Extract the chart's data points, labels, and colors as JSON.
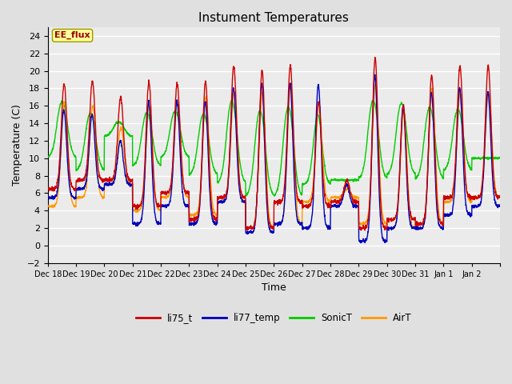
{
  "title": "Instument Temperatures",
  "xlabel": "Time",
  "ylabel": "Temperature (C)",
  "ylim": [
    -2,
    25
  ],
  "yticks": [
    -2,
    0,
    2,
    4,
    6,
    8,
    10,
    12,
    14,
    16,
    18,
    20,
    22,
    24
  ],
  "background_color": "#e0e0e0",
  "plot_bg_color": "#ebebeb",
  "series_colors": {
    "li75_t": "#cc0000",
    "li77_temp": "#0000bb",
    "SonicT": "#00cc00",
    "AirT": "#ff9900"
  },
  "x_tick_labels": [
    "Dec 18",
    "Dec 19",
    "Dec 20",
    "Dec 21",
    "Dec 22",
    "Dec 23",
    "Dec 24",
    "Dec 25",
    "Dec 26",
    "Dec 27",
    "Dec 28",
    "Dec 29",
    "Dec 30",
    "Dec 31",
    "Jan 1",
    "Jan 2"
  ],
  "num_days": 16,
  "line_width": 1.0,
  "annotation_text": "EE_flux",
  "annotation_color": "#990000",
  "annotation_bg": "#ffff99",
  "annotation_border": "#999900"
}
